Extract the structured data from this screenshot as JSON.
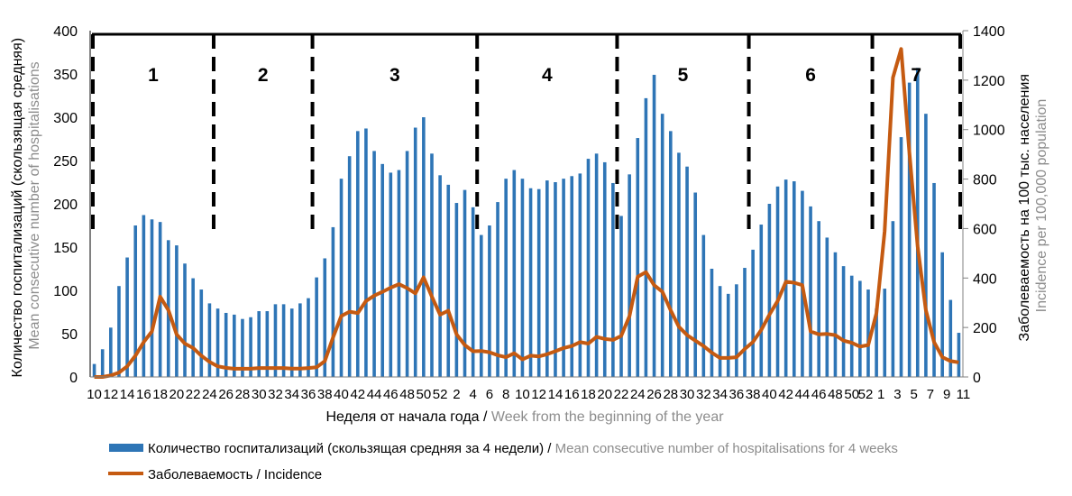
{
  "chart_data": {
    "type": "bar+line",
    "x_title": {
      "ru": "Неделя от начала года",
      "sep": " / ",
      "en": "Week from the beginning of the year"
    },
    "y_left_title": {
      "ru": "Количество госпитализаций (скользящая средняя)",
      "en": "Mean consecutive number of hospitalisations"
    },
    "y_right_title": {
      "ru": "Заболеваемость на 100 тыс. населения",
      "en": "Incidence per 100,000 population"
    },
    "y_left": {
      "min": 0,
      "max": 400,
      "ticks": [
        "0",
        "50",
        "100",
        "150",
        "200",
        "250",
        "300",
        "350",
        "400"
      ]
    },
    "y_right": {
      "min": 0,
      "max": 1400,
      "ticks": [
        "0",
        "200",
        "400",
        "600",
        "800",
        "1000",
        "1200",
        "1400"
      ]
    },
    "weeks": [
      10,
      11,
      12,
      13,
      14,
      15,
      16,
      17,
      18,
      19,
      20,
      21,
      22,
      23,
      24,
      25,
      26,
      27,
      28,
      29,
      30,
      31,
      32,
      33,
      34,
      35,
      36,
      37,
      38,
      39,
      40,
      41,
      42,
      43,
      44,
      45,
      46,
      47,
      48,
      49,
      50,
      51,
      52,
      1,
      2,
      3,
      4,
      5,
      6,
      7,
      8,
      9,
      10,
      11,
      12,
      13,
      14,
      15,
      16,
      17,
      18,
      19,
      20,
      21,
      22,
      23,
      24,
      25,
      26,
      27,
      28,
      29,
      30,
      31,
      32,
      33,
      34,
      35,
      36,
      37,
      38,
      39,
      40,
      41,
      42,
      43,
      44,
      45,
      46,
      47,
      48,
      49,
      50,
      51,
      52,
      1,
      2,
      3,
      4,
      5,
      6,
      7,
      8,
      9,
      10,
      11
    ],
    "week_season": [
      43,
      52,
      11
    ],
    "series": [
      {
        "name": "Количество госпитализаций (скользящая средняя за 4 недели)",
        "name_en": "Mean consecutive number of hospitalisations for 4 weeks",
        "axis": "left",
        "type": "bar",
        "color": "#2e75b6",
        "values": [
          15,
          32,
          57,
          105,
          138,
          175,
          187,
          182,
          179,
          158,
          152,
          131,
          114,
          101,
          85,
          79,
          74,
          72,
          67,
          69,
          76,
          76,
          84,
          84,
          79,
          85,
          91,
          115,
          137,
          173,
          229,
          255,
          284,
          287,
          261,
          246,
          236,
          239,
          261,
          288,
          300,
          258,
          233,
          222,
          201,
          216,
          196,
          164,
          175,
          202,
          229,
          239,
          229,
          218,
          217,
          227,
          225,
          229,
          232,
          235,
          252,
          258,
          248,
          224,
          186,
          234,
          276,
          322,
          349,
          304,
          284,
          259,
          243,
          213,
          164,
          125,
          105,
          96,
          107,
          126,
          147,
          176,
          200,
          220,
          228,
          226,
          215,
          197,
          180,
          161,
          144,
          128,
          117,
          111,
          101,
          79,
          102,
          180,
          277,
          340,
          357,
          304,
          224,
          144,
          89,
          51
        ]
      },
      {
        "name": "Заболеваемость",
        "name_en": "Incidence",
        "axis": "right",
        "type": "line",
        "color": "#c55a11",
        "values": [
          0,
          0,
          6,
          18,
          43,
          86,
          141,
          184,
          325,
          270,
          172,
          135,
          117,
          86,
          61,
          43,
          37,
          33,
          33,
          33,
          36,
          36,
          36,
          36,
          34,
          34,
          36,
          39,
          64,
          160,
          246,
          264,
          258,
          307,
          329,
          344,
          361,
          375,
          359,
          338,
          403,
          325,
          252,
          268,
          172,
          129,
          104,
          105,
          100,
          88,
          80,
          96,
          71,
          86,
          83,
          92,
          104,
          117,
          125,
          141,
          135,
          162,
          154,
          150,
          166,
          246,
          405,
          424,
          371,
          344,
          270,
          203,
          169,
          147,
          125,
          98,
          77,
          77,
          80,
          113,
          141,
          190,
          252,
          307,
          385,
          381,
          371,
          184,
          172,
          174,
          169,
          147,
          138,
          123,
          129,
          258,
          589,
          1210,
          1326,
          909,
          528,
          270,
          141,
          80,
          64,
          59
        ]
      }
    ],
    "periods": [
      {
        "label": "1",
        "start_index": 0,
        "end_index": 14
      },
      {
        "label": "2",
        "start_index": 15,
        "end_index": 26
      },
      {
        "label": "3",
        "start_index": 27,
        "end_index": 46
      },
      {
        "label": "4",
        "start_index": 47,
        "end_index": 63
      },
      {
        "label": "5",
        "start_index": 64,
        "end_index": 79
      },
      {
        "label": "6",
        "start_index": 80,
        "end_index": 94
      },
      {
        "label": "7",
        "start_index": 95,
        "end_index": 105
      }
    ],
    "legend": {
      "bar": {
        "ru": "Количество госпитализаций (скользящая средняя за 4 недели)",
        "sep": " / ",
        "en": "Mean consecutive number of hospitalisations for 4 weeks"
      },
      "line": {
        "text": "Заболеваемость / Incidence"
      }
    },
    "legend_position": "bottom"
  }
}
